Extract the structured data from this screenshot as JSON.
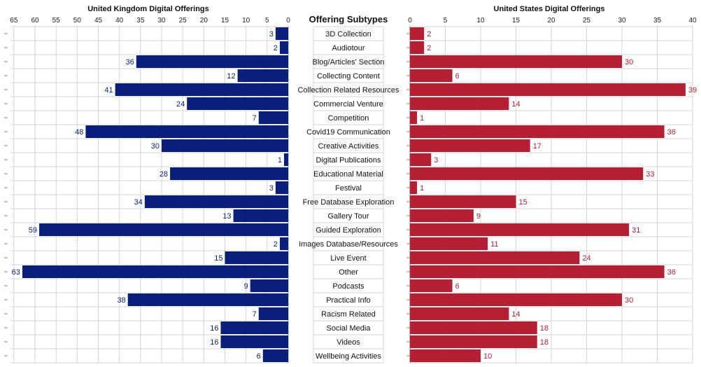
{
  "chart_data": [
    {
      "type": "bar",
      "orientation": "horizontal",
      "direction": "right-to-left",
      "title": "United Kingdom Digital Offerings",
      "color": "#0a1f7a",
      "xlim": [
        0,
        66
      ],
      "xticks": [
        0,
        5,
        10,
        15,
        20,
        25,
        30,
        35,
        40,
        45,
        50,
        55,
        60,
        65
      ],
      "values": [
        3,
        2,
        36,
        12,
        41,
        24,
        7,
        48,
        30,
        1,
        28,
        3,
        34,
        13,
        59,
        2,
        15,
        63,
        9,
        38,
        7,
        16,
        16,
        6
      ]
    },
    {
      "type": "bar",
      "orientation": "horizontal",
      "direction": "left-to-right",
      "title": "United States Digital Offerings",
      "color": "#b51f33",
      "xlim": [
        0,
        40
      ],
      "xticks": [
        0,
        5,
        10,
        15,
        20,
        25,
        30,
        35,
        40
      ],
      "values": [
        2,
        2,
        30,
        6,
        39,
        14,
        1,
        36,
        17,
        3,
        33,
        1,
        15,
        9,
        31,
        11,
        24,
        36,
        6,
        30,
        14,
        18,
        18,
        10
      ]
    }
  ],
  "categories_title": "Offering Subtypes",
  "categories": [
    "3D Collection",
    "Audiotour",
    "Blog/Articles' Section",
    "Collecting Content",
    "Collection Related Resources",
    "Commercial Venture",
    "Competition",
    "Covid19 Communication",
    "Creative Activities",
    "Digital Publications",
    "Educational Material",
    "Festival",
    "Free Database Exploration",
    "Gallery Tour",
    "Guided Exploration",
    "Images Database/Resources",
    "Live Event",
    "Other",
    "Podcasts",
    "Practical Info",
    "Racism Related",
    "Social Media",
    "Videos",
    "Wellbeing Activities"
  ]
}
